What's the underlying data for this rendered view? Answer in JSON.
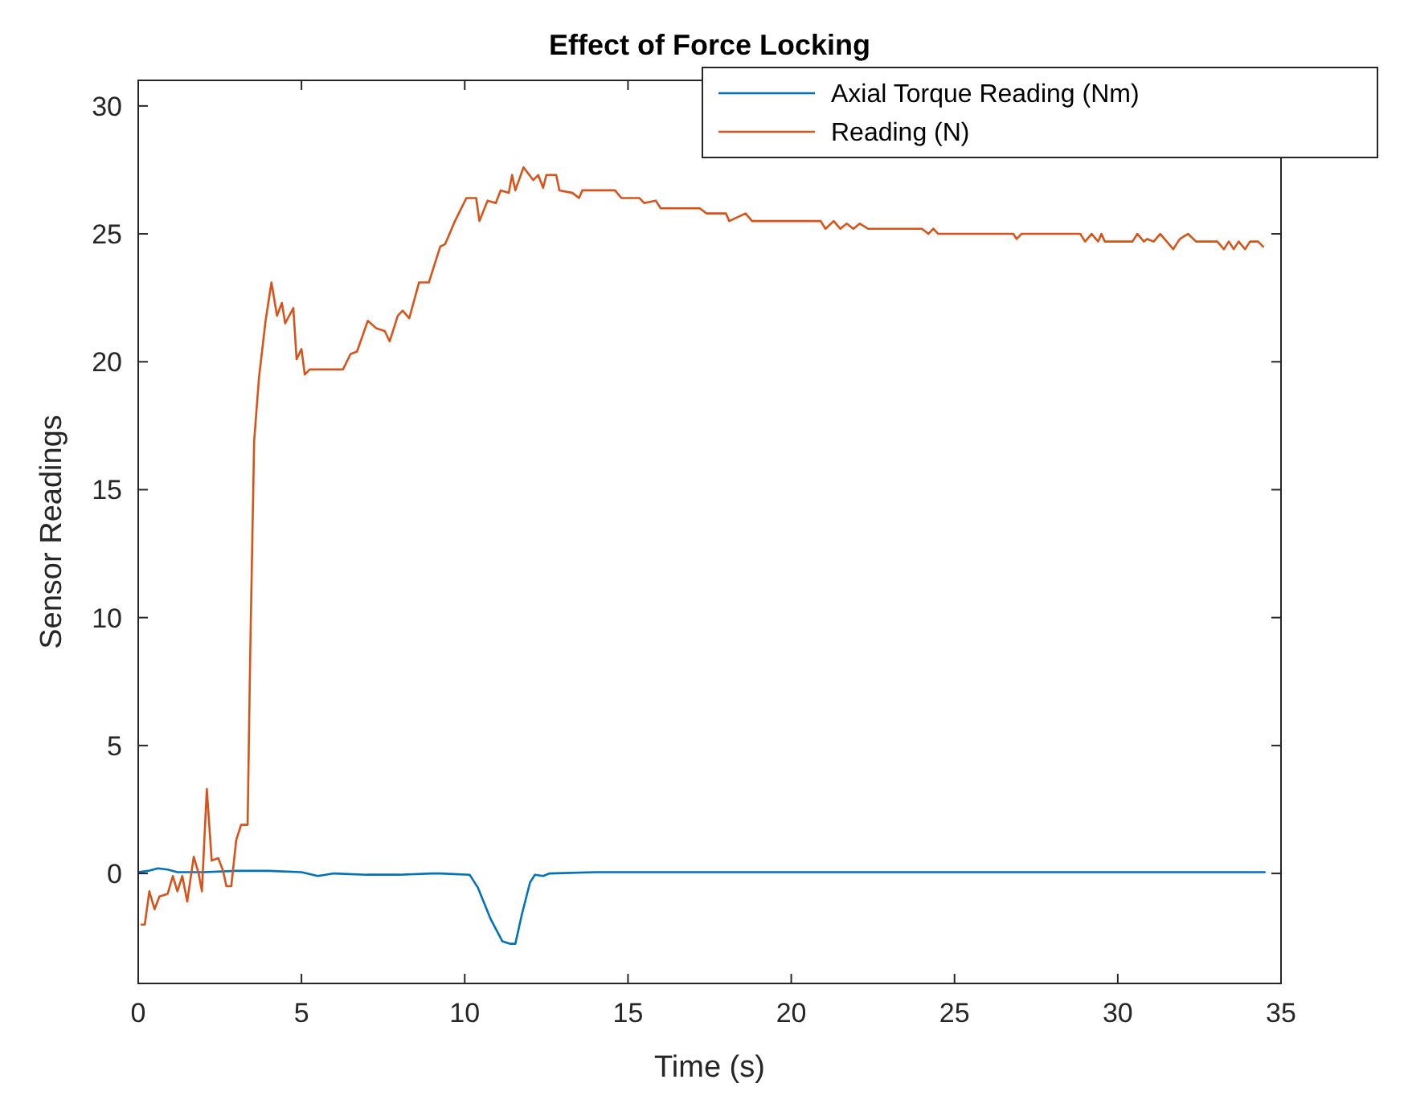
{
  "chart_data": {
    "type": "line",
    "title": "Effect of Force Locking",
    "xlabel": "Time (s)",
    "ylabel": "Sensor Readings",
    "xlim": [
      0,
      35
    ],
    "ylim": [
      -4.3,
      31
    ],
    "xticks": [
      0,
      5,
      10,
      15,
      20,
      25,
      30,
      35
    ],
    "yticks": [
      0,
      5,
      10,
      15,
      20,
      25,
      30
    ],
    "grid": false,
    "legend": "top right",
    "marker": "none",
    "line_style": "solid",
    "series": [
      {
        "name": "Axial Torque Reading (Nm)",
        "color": "#0072bd",
        "x": [
          0,
          0.3,
          0.6,
          0.9,
          1.2,
          2,
          3,
          4,
          5,
          5.5,
          6,
          7,
          8,
          9,
          9.25,
          10.15,
          10.4,
          10.8,
          11.15,
          11.4,
          11.55,
          11.75,
          12,
          12.15,
          12.4,
          12.6,
          14,
          16,
          18,
          20,
          22,
          24,
          26,
          28,
          30,
          32,
          34.5
        ],
        "values": [
          0.05,
          0.1,
          0.2,
          0.15,
          0.05,
          0.05,
          0.1,
          0.1,
          0.05,
          -0.1,
          0,
          -0.05,
          -0.05,
          0,
          0,
          -0.05,
          -0.55,
          -1.8,
          -2.65,
          -2.75,
          -2.75,
          -1.6,
          -0.35,
          -0.05,
          -0.1,
          0,
          0.05,
          0.05,
          0.05,
          0.05,
          0.05,
          0.05,
          0.05,
          0.05,
          0.05,
          0.05,
          0.05
        ]
      },
      {
        "name": "Reading (N)",
        "color": "#d95319",
        "x": [
          0.1,
          0.2,
          0.34,
          0.5,
          0.65,
          0.9,
          1.06,
          1.2,
          1.35,
          1.5,
          1.7,
          1.85,
          1.95,
          2.1,
          2.25,
          2.45,
          2.6,
          2.7,
          2.85,
          3.0,
          3.15,
          3.35,
          3.43,
          3.55,
          3.7,
          3.9,
          4.08,
          4.25,
          4.4,
          4.5,
          4.75,
          4.85,
          5.0,
          5.1,
          5.25,
          6.27,
          6.5,
          6.7,
          7.03,
          7.3,
          7.55,
          7.7,
          7.95,
          8.1,
          8.3,
          8.6,
          8.9,
          9.25,
          9.4,
          9.7,
          10.05,
          10.35,
          10.45,
          10.7,
          10.95,
          11.1,
          11.35,
          11.45,
          11.55,
          11.8,
          12.1,
          12.25,
          12.4,
          12.5,
          12.8,
          12.9,
          13.3,
          13.5,
          13.6,
          14.6,
          14.8,
          15.35,
          15.5,
          15.85,
          16.0,
          17.2,
          17.4,
          18.0,
          18.1,
          18.6,
          18.8,
          20.9,
          21.05,
          21.3,
          21.5,
          21.7,
          21.9,
          22.1,
          22.35,
          24.0,
          24.2,
          24.35,
          24.5,
          26.8,
          26.9,
          27.05,
          28.85,
          29.0,
          29.2,
          29.4,
          29.5,
          29.6,
          30.45,
          30.6,
          30.8,
          30.9,
          31.1,
          31.3,
          31.7,
          31.9,
          32.15,
          32.4,
          33.05,
          33.25,
          33.4,
          33.55,
          33.7,
          33.9,
          34.05,
          34.3,
          34.45
        ],
        "values": [
          -2.0,
          -2.0,
          -0.7,
          -1.4,
          -0.9,
          -0.8,
          -0.1,
          -0.7,
          -0.1,
          -1.1,
          0.65,
          0,
          -0.7,
          3.3,
          0.5,
          0.6,
          0.1,
          -0.5,
          -0.5,
          1.3,
          1.9,
          1.9,
          8.6,
          16.9,
          19.4,
          21.6,
          23.1,
          21.8,
          22.3,
          21.5,
          22.1,
          20.1,
          20.5,
          19.5,
          19.7,
          19.7,
          20.3,
          20.4,
          21.6,
          21.3,
          21.2,
          20.8,
          21.8,
          22.0,
          21.7,
          23.1,
          23.1,
          24.5,
          24.6,
          25.5,
          26.4,
          26.4,
          25.5,
          26.3,
          26.2,
          26.7,
          26.6,
          27.3,
          26.7,
          27.6,
          27.1,
          27.3,
          26.8,
          27.3,
          27.3,
          26.7,
          26.6,
          26.4,
          26.7,
          26.7,
          26.4,
          26.4,
          26.2,
          26.3,
          26.0,
          26.0,
          25.8,
          25.8,
          25.5,
          25.8,
          25.5,
          25.5,
          25.2,
          25.5,
          25.2,
          25.4,
          25.2,
          25.4,
          25.2,
          25.2,
          25.0,
          25.2,
          25.0,
          25.0,
          24.8,
          25.0,
          25.0,
          24.7,
          25.0,
          24.7,
          25.0,
          24.7,
          24.7,
          25.0,
          24.7,
          24.8,
          24.7,
          25.0,
          24.4,
          24.8,
          25.0,
          24.7,
          24.7,
          24.4,
          24.7,
          24.4,
          24.7,
          24.4,
          24.7,
          24.7,
          24.5
        ]
      }
    ]
  }
}
